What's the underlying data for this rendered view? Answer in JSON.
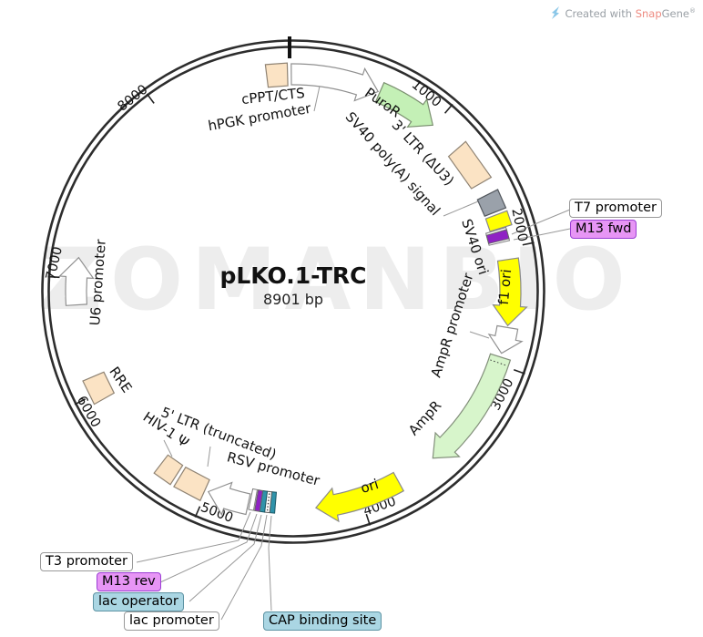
{
  "watermark": {
    "text": "ZOMANBIO"
  },
  "credit": {
    "prefix": "Created with",
    "brand_snap": "Snap",
    "brand_gene": "Gene",
    "registered": "®"
  },
  "plasmid": {
    "name": "pLKO.1-TRC",
    "size_label": "8901 bp"
  },
  "ring": {
    "ticks": [
      {
        "label": "1000",
        "deg": 40.4
      },
      {
        "label": "2000",
        "deg": 78.5
      },
      {
        "label": "3000",
        "deg": 109.5
      },
      {
        "label": "4000",
        "deg": 161.8
      },
      {
        "label": "5000",
        "deg": 203.5
      },
      {
        "label": "6000",
        "deg": 242.7
      },
      {
        "label": "7000",
        "deg": 273.5
      },
      {
        "label": "8000",
        "deg": 323.5
      }
    ]
  },
  "features": [
    {
      "id": "cppt-cts",
      "label": "cPPT/CTS",
      "shape": "box",
      "color": "beige",
      "deg": [
        353.0,
        358.5
      ]
    },
    {
      "id": "hpgk-promoter",
      "label": "hPGK promoter",
      "shape": "arrow",
      "color": "white",
      "deg": [
        359.5,
        383.0
      ]
    },
    {
      "id": "puror",
      "label": "PuroR",
      "shape": "arrow",
      "color": "green",
      "deg": [
        23.5,
        40.0
      ],
      "label_inside": true
    },
    {
      "id": "three-ltr",
      "label": "3' LTR (ΔU3)",
      "shape": "box",
      "color": "beige",
      "deg": [
        49.0,
        60.0
      ]
    },
    {
      "id": "sv40-polya",
      "label": "SV40 poly(A) signal",
      "shape": "box",
      "color": "gray",
      "deg": [
        63.5,
        68.5
      ]
    },
    {
      "id": "sv40-ori",
      "label": "SV40 ori",
      "shape": "box",
      "color": "yellow",
      "deg": [
        69.3,
        73.0
      ]
    },
    {
      "id": "t7-marker",
      "label": "",
      "shape": "box",
      "color": "whitethin",
      "deg": [
        73.2,
        76.7
      ],
      "thin": true
    },
    {
      "id": "m13fwd-marker",
      "label": "",
      "shape": "box",
      "color": "purple",
      "deg": [
        73.8,
        76.2
      ],
      "thin": true
    },
    {
      "id": "f1-ori",
      "label": "f1 ori",
      "shape": "arrow",
      "color": "yellow",
      "deg": [
        81.5,
        99.0
      ],
      "label_inside": true
    },
    {
      "id": "ampr-promoter",
      "label": "AmpR promoter",
      "shape": "arrow",
      "color": "white",
      "deg": [
        99.5,
        106.5
      ]
    },
    {
      "id": "ampr",
      "label": "AmpR",
      "shape": "arrow",
      "color": "green2",
      "deg": [
        107.5,
        140.0
      ],
      "dotted_start": true
    },
    {
      "id": "ori",
      "label": "ori",
      "shape": "arrow",
      "color": "yellow",
      "deg": [
        151.0,
        174.0
      ],
      "label_inside": true
    },
    {
      "id": "cap-marker",
      "label": "",
      "shape": "box",
      "color": "teal",
      "deg": [
        184.8,
        186.1
      ],
      "thin": true
    },
    {
      "id": "lacprom-marker",
      "label": "",
      "shape": "box",
      "color": "hatched",
      "deg": [
        186.1,
        187.4
      ],
      "thin": true
    },
    {
      "id": "lacop-marker",
      "label": "",
      "shape": "box",
      "color": "teal",
      "deg": [
        187.4,
        188.7
      ],
      "thin": true
    },
    {
      "id": "m13rev-marker",
      "label": "",
      "shape": "box",
      "color": "purple",
      "deg": [
        188.7,
        190.0
      ],
      "thin": true
    },
    {
      "id": "t3-marker",
      "label": "",
      "shape": "box",
      "color": "whitethin",
      "deg": [
        190.3,
        191.6
      ],
      "thin": true
    },
    {
      "id": "rsv-promoter",
      "label": "RSV promoter",
      "shape": "arrow",
      "color": "white",
      "deg": [
        192.0,
        203.0
      ]
    },
    {
      "id": "five-ltr",
      "label": "5' LTR (truncated)",
      "shape": "box",
      "color": "beige",
      "deg": [
        204.0,
        211.5
      ]
    },
    {
      "id": "hiv-psi",
      "label": "HIV-1 Ψ",
      "shape": "box",
      "color": "beige",
      "deg": [
        212.5,
        217.5
      ]
    },
    {
      "id": "rre",
      "label": "RRE",
      "shape": "box",
      "color": "beige",
      "deg": [
        240.5,
        247.0
      ]
    },
    {
      "id": "u6-promoter",
      "label": "U6 promoter",
      "shape": "arrow",
      "color": "white",
      "deg": [
        266.5,
        279.0
      ]
    }
  ],
  "callouts": [
    {
      "id": "t7-promoter",
      "label": "T7 promoter",
      "style": "plain"
    },
    {
      "id": "m13-fwd",
      "label": "M13 fwd",
      "style": "purple"
    },
    {
      "id": "t3-promoter",
      "label": "T3 promoter",
      "style": "plain"
    },
    {
      "id": "m13-rev",
      "label": "M13 rev",
      "style": "purple"
    },
    {
      "id": "lac-operator",
      "label": "lac operator",
      "style": "cyan"
    },
    {
      "id": "lac-promoter",
      "label": "lac promoter",
      "style": "plain"
    },
    {
      "id": "cap-binding-site",
      "label": "CAP binding site",
      "style": "cyan"
    }
  ],
  "colors": {
    "ring": "#2d2d2d",
    "leader": "#999999",
    "beige": {
      "fill": "#fbe3c4",
      "stroke": "#8f8373"
    },
    "green": {
      "fill": "#c4f0b6",
      "stroke": "#7a8f6f"
    },
    "green2": {
      "fill": "#d7f5cb",
      "stroke": "#828f7a"
    },
    "yellow": {
      "fill": "#ffff00",
      "stroke": "#8a8a8a"
    },
    "gray": {
      "fill": "#9aa1aa",
      "stroke": "#51565c"
    },
    "white": {
      "fill": "#ffffff",
      "stroke": "#909090"
    },
    "whitethin": {
      "fill": "#ffffff",
      "stroke": "#7d7d7d"
    },
    "purple": {
      "fill": "#8f22c4",
      "stroke": "#666666"
    },
    "teal": {
      "fill": "#2f93aa",
      "stroke": "#1c5866"
    },
    "hatched": {
      "fill": "#ffffff",
      "stroke": "#606060"
    }
  }
}
